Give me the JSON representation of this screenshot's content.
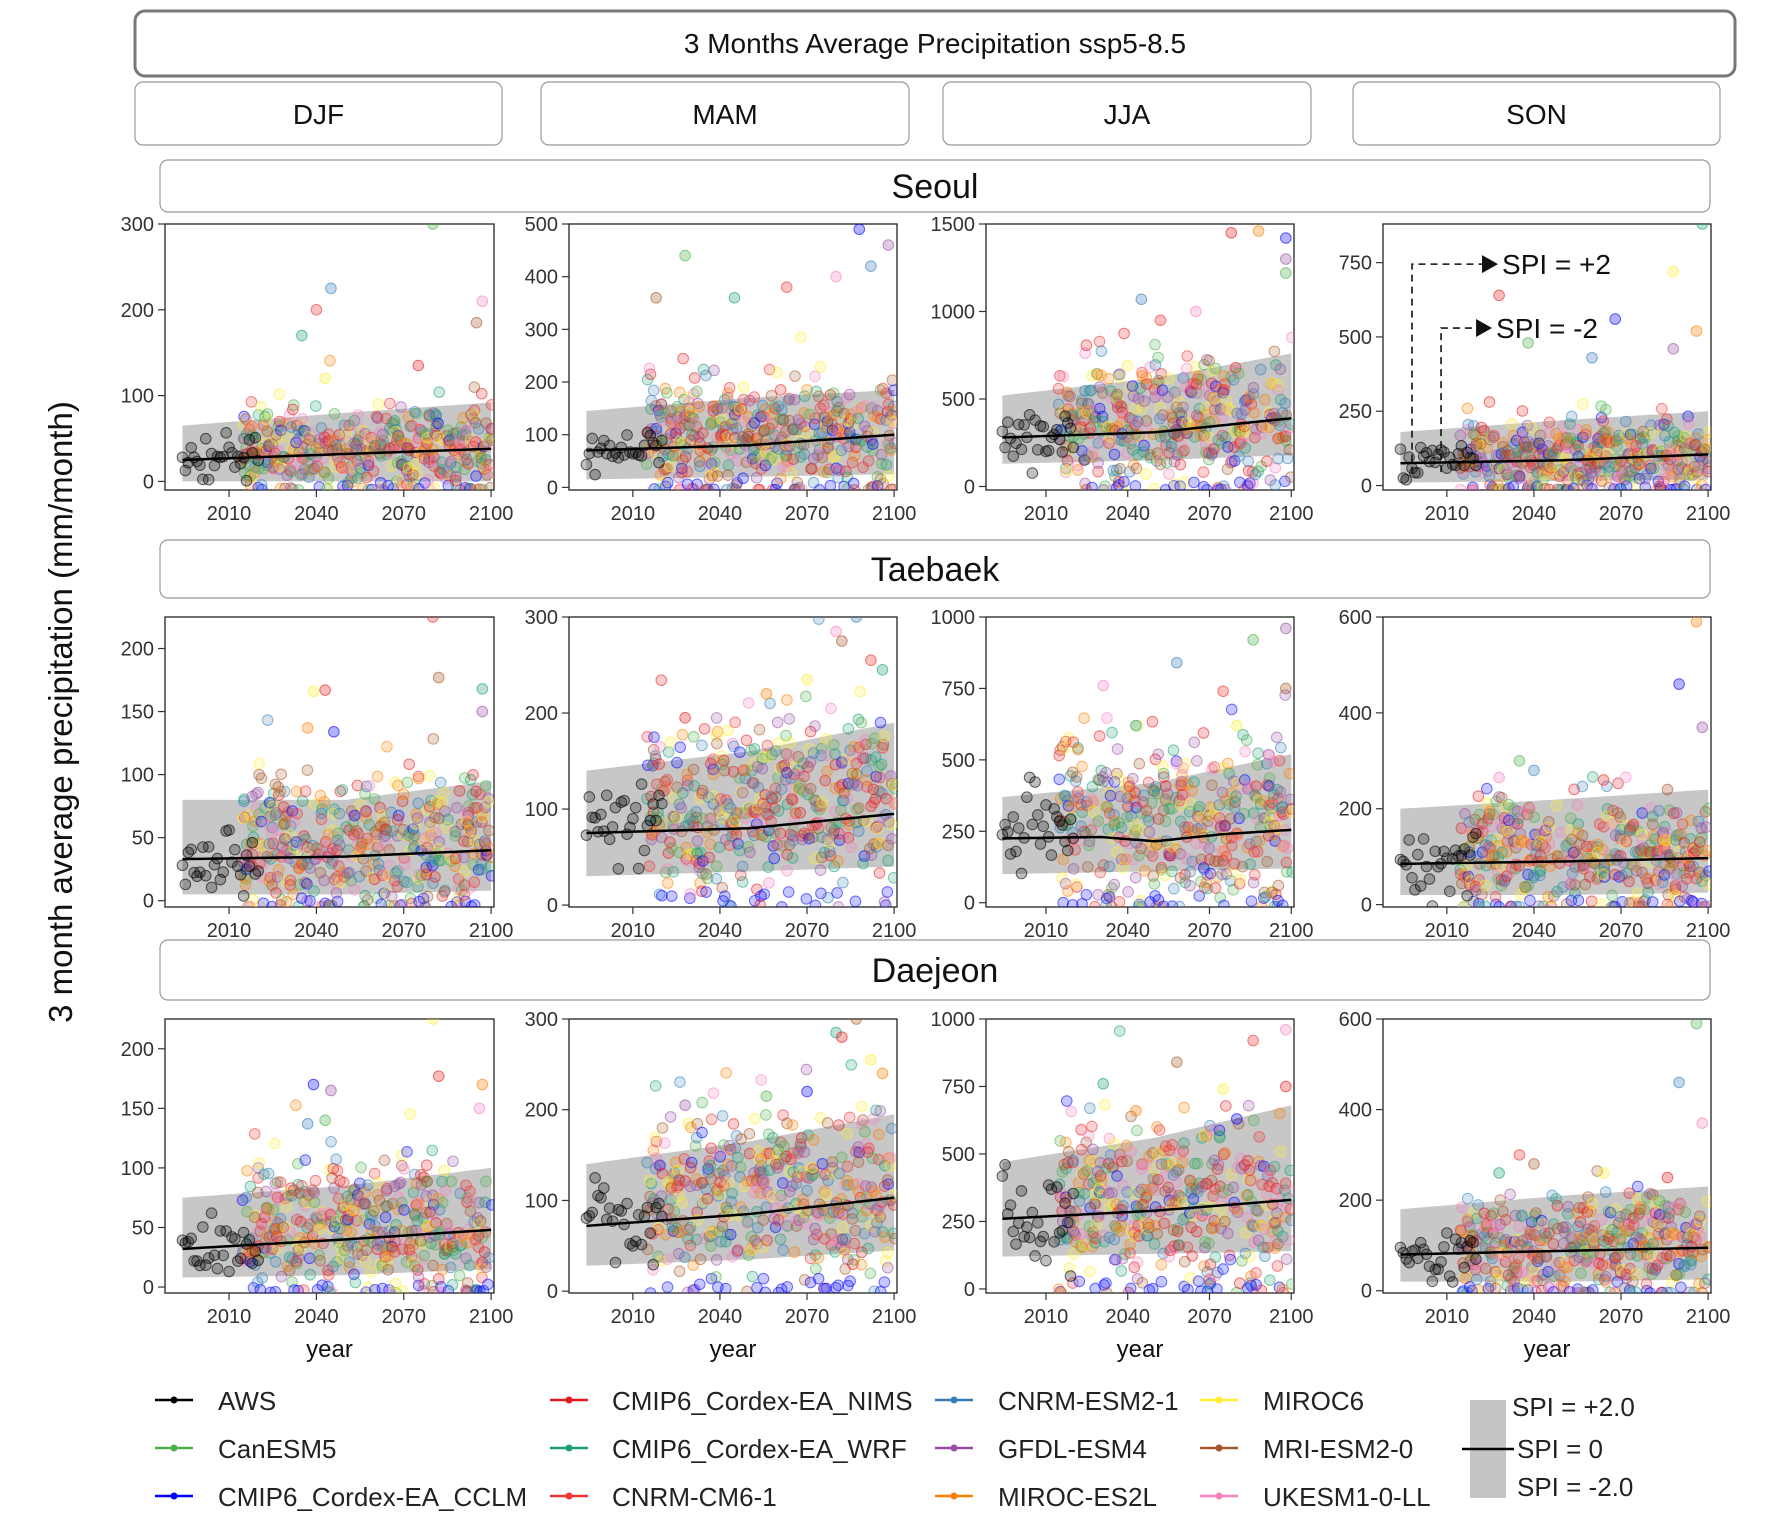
{
  "chart_data": {
    "type": "scatter",
    "title": "3 Months Average Precipitation ssp5-8.5",
    "ylabel": "3 month average precipitation (mm/month)",
    "xlabel": "year",
    "x_ticks": [
      2010,
      2040,
      2070,
      2100
    ],
    "x_range": [
      1988,
      2101
    ],
    "seasons": [
      "DJF",
      "MAM",
      "JJA",
      "SON"
    ],
    "cities": [
      "Seoul",
      "Taebaek",
      "Daejeon"
    ],
    "panels": [
      {
        "city": "Seoul",
        "season": "DJF",
        "ylim": [
          -10,
          300
        ],
        "yticks": [
          0,
          100,
          200,
          300
        ],
        "trend": [
          [
            1994,
            25
          ],
          [
            2050,
            32
          ],
          [
            2100,
            38
          ]
        ],
        "band": [
          [
            1994,
            0,
            65
          ],
          [
            2050,
            0,
            80
          ],
          [
            2100,
            0,
            92
          ]
        ],
        "aws_mean": 26,
        "aws_sd": 12,
        "model_mean": 38,
        "model_sd": 30,
        "outliers": [
          [
            2080,
            300
          ],
          [
            2045,
            225
          ],
          [
            2097,
            210
          ],
          [
            2040,
            200
          ],
          [
            2095,
            185
          ],
          [
            2035,
            170
          ],
          [
            2043,
            120
          ],
          [
            2075,
            135
          ]
        ]
      },
      {
        "city": "Seoul",
        "season": "MAM",
        "ylim": [
          -5,
          500
        ],
        "yticks": [
          0,
          100,
          200,
          300,
          400,
          500
        ],
        "trend": [
          [
            1994,
            70
          ],
          [
            2050,
            80
          ],
          [
            2100,
            100
          ]
        ],
        "band": [
          [
            1994,
            15,
            145
          ],
          [
            2050,
            20,
            170
          ],
          [
            2100,
            25,
            185
          ]
        ],
        "aws_mean": 72,
        "aws_sd": 20,
        "model_mean": 95,
        "model_sd": 60,
        "outliers": [
          [
            2088,
            490
          ],
          [
            2098,
            460
          ],
          [
            2028,
            440
          ],
          [
            2092,
            420
          ],
          [
            2080,
            400
          ],
          [
            2063,
            380
          ],
          [
            2018,
            360
          ],
          [
            2045,
            360
          ]
        ]
      },
      {
        "city": "Seoul",
        "season": "JJA",
        "ylim": [
          -20,
          1500
        ],
        "yticks": [
          0,
          500,
          1000,
          1500
        ],
        "trend": [
          [
            1994,
            280
          ],
          [
            2050,
            310
          ],
          [
            2100,
            390
          ]
        ],
        "band": [
          [
            1994,
            130,
            520
          ],
          [
            2050,
            150,
            620
          ],
          [
            2100,
            180,
            760
          ]
        ],
        "aws_mean": 285,
        "aws_sd": 110,
        "model_mean": 340,
        "model_sd": 200,
        "outliers": [
          [
            2078,
            1450
          ],
          [
            2088,
            1460
          ],
          [
            2098,
            1420
          ],
          [
            2098,
            1300
          ],
          [
            2098,
            1220
          ],
          [
            2045,
            1070
          ],
          [
            2065,
            1000
          ],
          [
            2052,
            950
          ]
        ]
      },
      {
        "city": "Seoul",
        "season": "SON",
        "ylim": [
          -15,
          880
        ],
        "yticks": [
          0,
          250,
          500,
          750
        ],
        "trend": [
          [
            1994,
            75
          ],
          [
            2050,
            85
          ],
          [
            2100,
            105
          ]
        ],
        "band": [
          [
            1994,
            10,
            180
          ],
          [
            2050,
            15,
            220
          ],
          [
            2100,
            20,
            250
          ]
        ],
        "aws_mean": 75,
        "aws_sd": 30,
        "model_mean": 90,
        "model_sd": 75,
        "outliers": [
          [
            2098,
            880
          ],
          [
            2088,
            720
          ],
          [
            2028,
            640
          ],
          [
            2096,
            520
          ],
          [
            2068,
            560
          ],
          [
            2088,
            460
          ],
          [
            2038,
            480
          ],
          [
            2060,
            430
          ]
        ],
        "annotations": [
          {
            "text": "SPI = +2",
            "value": 745,
            "year": 1998
          },
          {
            "text": "SPI =  -2",
            "value": 530,
            "year": 2008
          }
        ]
      },
      {
        "city": "Taebaek",
        "season": "DJF",
        "ylim": [
          -5,
          225
        ],
        "yticks": [
          0,
          50,
          100,
          150,
          200
        ],
        "trend": [
          [
            1994,
            33
          ],
          [
            2050,
            35
          ],
          [
            2100,
            40
          ]
        ],
        "band": [
          [
            1994,
            5,
            80
          ],
          [
            2050,
            5,
            80
          ],
          [
            2100,
            8,
            95
          ]
        ],
        "aws_mean": 30,
        "aws_sd": 13,
        "model_mean": 48,
        "model_sd": 32,
        "outliers": [
          [
            2080,
            225
          ],
          [
            2082,
            177
          ],
          [
            2097,
            168
          ],
          [
            2039,
            166
          ],
          [
            2043,
            167
          ],
          [
            2037,
            137
          ],
          [
            2046,
            134
          ],
          [
            2097,
            150
          ]
        ]
      },
      {
        "city": "Taebaek",
        "season": "MAM",
        "ylim": [
          -2,
          300
        ],
        "yticks": [
          0,
          100,
          200,
          300
        ],
        "trend": [
          [
            1994,
            75
          ],
          [
            2050,
            80
          ],
          [
            2100,
            95
          ]
        ],
        "band": [
          [
            1994,
            30,
            140
          ],
          [
            2050,
            35,
            160
          ],
          [
            2100,
            40,
            190
          ]
        ],
        "aws_mean": 80,
        "aws_sd": 20,
        "model_mean": 105,
        "model_sd": 50,
        "outliers": [
          [
            2087,
            300
          ],
          [
            2080,
            285
          ],
          [
            2092,
            255
          ],
          [
            2082,
            275
          ],
          [
            2096,
            245
          ],
          [
            2070,
            235
          ],
          [
            2028,
            195
          ],
          [
            2056,
            220
          ]
        ]
      },
      {
        "city": "Taebaek",
        "season": "JJA",
        "ylim": [
          -15,
          1000
        ],
        "yticks": [
          0,
          250,
          500,
          750,
          1000
        ],
        "trend": [
          [
            1994,
            225
          ],
          [
            2030,
            230
          ],
          [
            2050,
            215
          ],
          [
            2075,
            240
          ],
          [
            2100,
            255
          ]
        ],
        "band": [
          [
            1994,
            100,
            370
          ],
          [
            2050,
            110,
            420
          ],
          [
            2100,
            120,
            520
          ]
        ],
        "aws_mean": 240,
        "aws_sd": 90,
        "model_mean": 290,
        "model_sd": 160,
        "outliers": [
          [
            2098,
            960
          ],
          [
            2086,
            920
          ],
          [
            2058,
            840
          ],
          [
            2031,
            760
          ],
          [
            2075,
            740
          ],
          [
            2098,
            750
          ],
          [
            2043,
            620
          ],
          [
            2080,
            620
          ]
        ]
      },
      {
        "city": "Taebaek",
        "season": "SON",
        "ylim": [
          -5,
          600
        ],
        "yticks": [
          0,
          200,
          400,
          600
        ],
        "trend": [
          [
            1994,
            85
          ],
          [
            2050,
            90
          ],
          [
            2100,
            97
          ]
        ],
        "band": [
          [
            1994,
            20,
            200
          ],
          [
            2050,
            20,
            220
          ],
          [
            2100,
            25,
            240
          ]
        ],
        "aws_mean": 85,
        "aws_sd": 30,
        "model_mean": 100,
        "model_sd": 65,
        "outliers": [
          [
            2096,
            590
          ],
          [
            2090,
            460
          ],
          [
            2098,
            370
          ],
          [
            2035,
            300
          ],
          [
            2040,
            280
          ],
          [
            2028,
            265
          ],
          [
            2064,
            260
          ],
          [
            2086,
            240
          ]
        ]
      },
      {
        "city": "Daejeon",
        "season": "DJF",
        "ylim": [
          -5,
          225
        ],
        "yticks": [
          0,
          50,
          100,
          150,
          200
        ],
        "trend": [
          [
            1994,
            32
          ],
          [
            2050,
            40
          ],
          [
            2100,
            48
          ]
        ],
        "band": [
          [
            1994,
            8,
            75
          ],
          [
            2050,
            10,
            85
          ],
          [
            2100,
            15,
            100
          ]
        ],
        "aws_mean": 30,
        "aws_sd": 13,
        "model_mean": 50,
        "model_sd": 32,
        "outliers": [
          [
            2080,
            225
          ],
          [
            2082,
            177
          ],
          [
            2097,
            170
          ],
          [
            2039,
            170
          ],
          [
            2045,
            165
          ],
          [
            2043,
            140
          ],
          [
            2037,
            137
          ],
          [
            2096,
            150
          ]
        ]
      },
      {
        "city": "Daejeon",
        "season": "MAM",
        "ylim": [
          -2,
          300
        ],
        "yticks": [
          0,
          100,
          200,
          300
        ],
        "trend": [
          [
            1994,
            72
          ],
          [
            2050,
            85
          ],
          [
            2100,
            103
          ]
        ],
        "band": [
          [
            1994,
            28,
            140
          ],
          [
            2050,
            35,
            165
          ],
          [
            2100,
            45,
            195
          ]
        ],
        "aws_mean": 78,
        "aws_sd": 20,
        "model_mean": 110,
        "model_sd": 52,
        "outliers": [
          [
            2087,
            300
          ],
          [
            2080,
            285
          ],
          [
            2092,
            255
          ],
          [
            2082,
            280
          ],
          [
            2096,
            240
          ],
          [
            2070,
            220
          ],
          [
            2028,
            205
          ],
          [
            2056,
            215
          ]
        ]
      },
      {
        "city": "Daejeon",
        "season": "JJA",
        "ylim": [
          -15,
          1000
        ],
        "yticks": [
          0,
          250,
          500,
          750,
          1000
        ],
        "trend": [
          [
            1994,
            260
          ],
          [
            2050,
            290
          ],
          [
            2100,
            330
          ]
        ],
        "band": [
          [
            1994,
            120,
            470
          ],
          [
            2050,
            130,
            560
          ],
          [
            2100,
            140,
            680
          ]
        ],
        "aws_mean": 245,
        "aws_sd": 90,
        "model_mean": 300,
        "model_sd": 170,
        "outliers": [
          [
            2098,
            960
          ],
          [
            2086,
            920
          ],
          [
            2058,
            840
          ],
          [
            2031,
            760
          ],
          [
            2075,
            740
          ],
          [
            2098,
            750
          ],
          [
            2043,
            660
          ],
          [
            2080,
            630
          ]
        ]
      },
      {
        "city": "Daejeon",
        "season": "SON",
        "ylim": [
          -5,
          600
        ],
        "yticks": [
          0,
          200,
          400,
          600
        ],
        "trend": [
          [
            1994,
            80
          ],
          [
            2050,
            88
          ],
          [
            2100,
            95
          ]
        ],
        "band": [
          [
            1994,
            20,
            180
          ],
          [
            2050,
            20,
            210
          ],
          [
            2100,
            25,
            230
          ]
        ],
        "aws_mean": 80,
        "aws_sd": 30,
        "model_mean": 95,
        "model_sd": 62,
        "outliers": [
          [
            2096,
            590
          ],
          [
            2090,
            460
          ],
          [
            2098,
            370
          ],
          [
            2035,
            300
          ],
          [
            2040,
            280
          ],
          [
            2028,
            260
          ],
          [
            2064,
            260
          ],
          [
            2086,
            250
          ]
        ]
      }
    ],
    "series": [
      {
        "name": "AWS",
        "color": "#000000",
        "years": [
          1994,
          2020
        ]
      },
      {
        "name": "CanESM5",
        "color": "#4daf4a",
        "years": [
          2015,
          2100
        ]
      },
      {
        "name": "CMIP6_Cordex-EA_CCLM",
        "color": "#0000ff",
        "years": [
          2015,
          2100
        ]
      },
      {
        "name": "CMIP6_Cordex-EA_NIMS",
        "color": "#e41a1c",
        "years": [
          2015,
          2100
        ]
      },
      {
        "name": "CMIP6_Cordex-EA_WRF",
        "color": "#1b9e77",
        "years": [
          2015,
          2100
        ]
      },
      {
        "name": "CNRM-CM6-1",
        "color": "#ee3333",
        "years": [
          2015,
          2100
        ]
      },
      {
        "name": "CNRM-ESM2-1",
        "color": "#377eb8",
        "years": [
          2015,
          2100
        ]
      },
      {
        "name": "GFDL-ESM4",
        "color": "#984ea3",
        "years": [
          2015,
          2100
        ]
      },
      {
        "name": "MIROC-ES2L",
        "color": "#ff7f00",
        "years": [
          2015,
          2100
        ]
      },
      {
        "name": "MIROC6",
        "color": "#ffee33",
        "years": [
          2015,
          2100
        ]
      },
      {
        "name": "MRI-ESM2-0",
        "color": "#a65628",
        "years": [
          2015,
          2100
        ]
      },
      {
        "name": "UKESM1-0-LL",
        "color": "#f781bf",
        "years": [
          2015,
          2100
        ]
      }
    ],
    "band_legend": {
      "upper": "SPI = +2.0",
      "mid": "SPI = 0",
      "lower": "SPI =  -2.0"
    }
  }
}
